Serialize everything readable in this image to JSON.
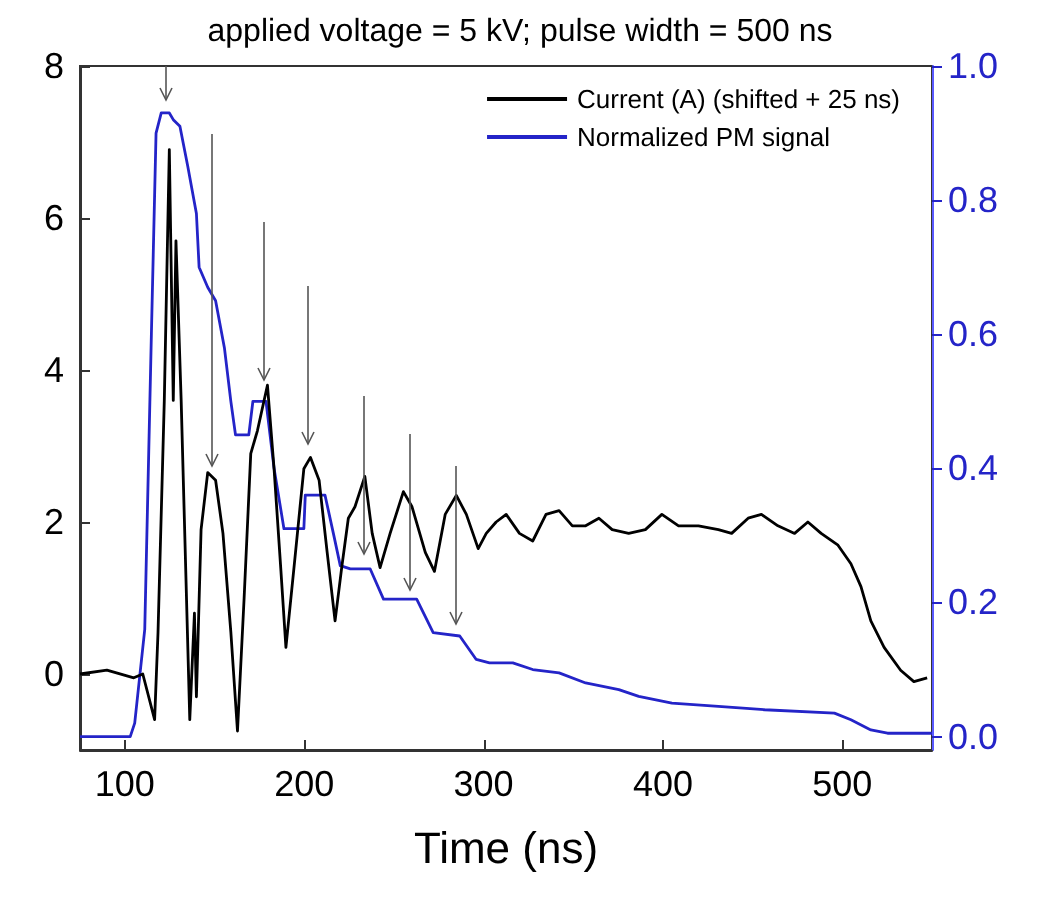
{
  "chart_data": {
    "type": "line",
    "title": "applied voltage = 5 kV; pulse width = 500 ns",
    "xlabel": "Time (ns)",
    "xlim": [
      75,
      550
    ],
    "xticks": [
      100,
      200,
      300,
      400,
      500
    ],
    "ylim": [
      -1,
      8
    ],
    "yticks": [
      0,
      2,
      4,
      6,
      8
    ],
    "y2lim": [
      -0.02,
      1.0
    ],
    "y2ticks": [
      {
        "value": 0,
        "label": "0.0"
      },
      0.2,
      0.4,
      0.6,
      0.8,
      {
        "value": 1,
        "label": "1.0"
      }
    ],
    "legend": "top right",
    "grid": false,
    "marker": "none",
    "line_style": "solid",
    "series": [
      {
        "name": "Current (A) (shifted + 25 ns)",
        "color": "#000000",
        "x": [
          75,
          90,
          105,
          110,
          116.6,
          118.5,
          122,
          124.8,
          127,
          128.5,
          131.4,
          136.2,
          138.8,
          139.9,
          142.5,
          146.2,
          150.6,
          154.7,
          159.1,
          162.8,
          166.5,
          170.2,
          173.9,
          179.5,
          183.2,
          186.9,
          189.8,
          194.3,
          199.8,
          203.5,
          208.3,
          212.8,
          217.2,
          220.9,
          224.6,
          228.3,
          233.8,
          237.9,
          242.3,
          247.9,
          255.3,
          260.1,
          267.5,
          272.6,
          278.6,
          284.8,
          290.4,
          297,
          301.5,
          307,
          312.6,
          320,
          327.4,
          334.8,
          342.1,
          349.5,
          356.9,
          364.3,
          371.7,
          380.9,
          390.2,
          399.4,
          408.7,
          419.8,
          430.9,
          438.3,
          447.5,
          454.9,
          464.1,
          473.4,
          480.8,
          488.2,
          497.4,
          504.8,
          510.4,
          515.9,
          523.3,
          532.5,
          539.9,
          547.3
        ],
        "values": [
          0,
          0.05,
          -0.05,
          0,
          -0.6,
          0.55,
          3.6,
          6.9,
          3.6,
          5.7,
          3.6,
          -0.6,
          0.8,
          -0.3,
          1.9,
          2.65,
          2.55,
          1.85,
          0.55,
          -0.75,
          1.0,
          2.9,
          3.2,
          3.8,
          2.7,
          1.4,
          0.35,
          1.4,
          2.7,
          2.85,
          2.55,
          1.6,
          0.7,
          1.4,
          2.05,
          2.2,
          2.6,
          1.85,
          1.4,
          1.85,
          2.4,
          2.2,
          1.6,
          1.35,
          2.1,
          2.35,
          2.1,
          1.65,
          1.85,
          2.0,
          2.1,
          1.85,
          1.75,
          2.1,
          2.15,
          1.95,
          1.95,
          2.05,
          1.9,
          1.85,
          1.9,
          2.1,
          1.95,
          1.95,
          1.9,
          1.85,
          2.05,
          2.1,
          1.95,
          1.85,
          2.0,
          1.85,
          1.7,
          1.45,
          1.15,
          0.7,
          0.35,
          0.05,
          -0.1,
          -0.05
        ]
      },
      {
        "name": "Normalized PM signal",
        "color": "#2424c8",
        "axis": "y2",
        "x": [
          75,
          97.4,
          103,
          105.5,
          111.1,
          114.8,
          117.4,
          120.3,
          124.8,
          127,
          130.7,
          135.1,
          139.9,
          141.4,
          146.2,
          150.6,
          155.5,
          159.1,
          161.7,
          169.1,
          171.4,
          178.7,
          183.2,
          188.7,
          199.8,
          200.6,
          211.6,
          216.5,
          220.1,
          225.7,
          236.8,
          244.2,
          262.7,
          271.9,
          286.7,
          295.9,
          303.3,
          316.3,
          327.4,
          342.1,
          356.9,
          375.4,
          386.5,
          405,
          430.9,
          456.7,
          495.6,
          504.8,
          515.9,
          525.2,
          550
        ],
        "values": [
          0,
          0,
          0,
          0.02,
          0.16,
          0.6,
          0.9,
          0.93,
          0.93,
          0.92,
          0.91,
          0.85,
          0.78,
          0.7,
          0.67,
          0.65,
          0.58,
          0.5,
          0.45,
          0.45,
          0.5,
          0.5,
          0.4,
          0.31,
          0.31,
          0.36,
          0.36,
          0.3,
          0.255,
          0.25,
          0.25,
          0.205,
          0.205,
          0.155,
          0.15,
          0.115,
          0.11,
          0.11,
          0.1,
          0.095,
          0.08,
          0.07,
          0.06,
          0.05,
          0.045,
          0.04,
          0.035,
          0.025,
          0.01,
          0.005,
          0.005
        ]
      }
    ]
  }
}
